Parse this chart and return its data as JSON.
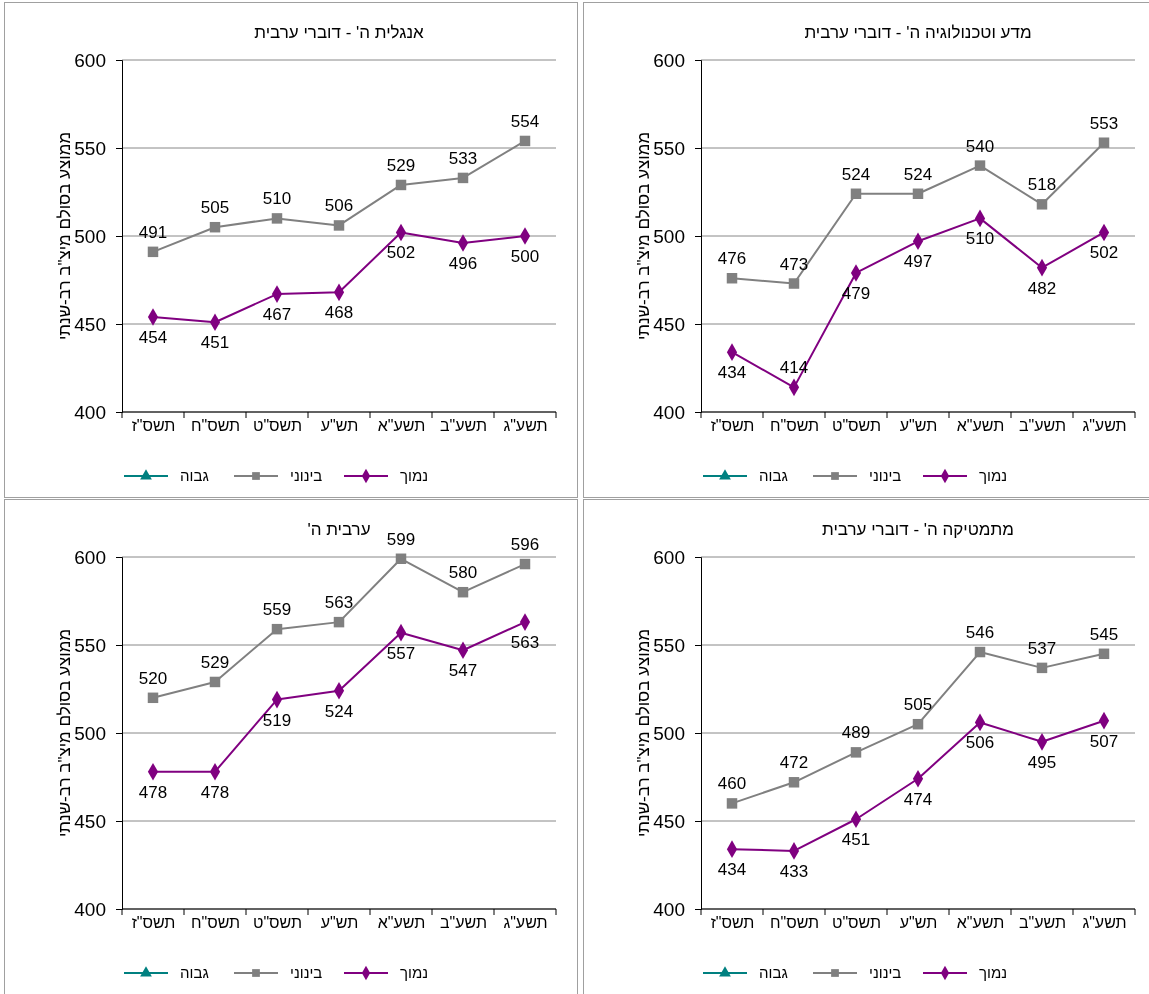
{
  "chart_data": [
    {
      "type": "line",
      "title": "אנגלית ה' - דוברי ערבית",
      "ylabel": "ממוצע בסולם מיצ\"ב רב-שנתי",
      "categories": [
        "תשס\"ז",
        "תשס\"ח",
        "תשס\"ט",
        "תש\"ע",
        "תשע\"א",
        "תשע\"ב",
        "תשע\"ג"
      ],
      "ylim": [
        400,
        600
      ],
      "yticks": [
        400,
        450,
        500,
        550,
        600
      ],
      "grid": "y",
      "legend": "bottom",
      "data_labels": true,
      "line_style": "solid",
      "series": [
        {
          "name": "נמוך",
          "color": "#800080",
          "marker": "diamond",
          "values": [
            454,
            451,
            467,
            468,
            502,
            496,
            500
          ]
        },
        {
          "name": "בינוני",
          "color": "#808080",
          "marker": "square",
          "values": [
            491,
            505,
            510,
            506,
            529,
            533,
            554
          ]
        },
        {
          "name": "גבוה",
          "color": "#008080",
          "marker": "triangle",
          "values": [
            null,
            null,
            null,
            null,
            null,
            null,
            null
          ]
        }
      ]
    },
    {
      "type": "line",
      "title": "מדע וטכנולוגיה ה' - דוברי ערבית",
      "ylabel": "ממוצע בסולם מיצ\"ב רב-שנתי",
      "categories": [
        "תשס\"ז",
        "תשס\"ח",
        "תשס\"ט",
        "תש\"ע",
        "תשע\"א",
        "תשע\"ב",
        "תשע\"ג"
      ],
      "ylim": [
        400,
        600
      ],
      "yticks": [
        400,
        450,
        500,
        550,
        600
      ],
      "grid": "y",
      "legend": "bottom",
      "data_labels": true,
      "line_style": "solid",
      "series": [
        {
          "name": "נמוך",
          "color": "#800080",
          "marker": "diamond",
          "values": [
            434,
            414,
            479,
            497,
            510,
            482,
            502
          ]
        },
        {
          "name": "בינוני",
          "color": "#808080",
          "marker": "square",
          "values": [
            476,
            473,
            524,
            524,
            540,
            518,
            553
          ]
        },
        {
          "name": "גבוה",
          "color": "#008080",
          "marker": "triangle",
          "values": [
            null,
            null,
            null,
            null,
            null,
            null,
            null
          ]
        }
      ]
    },
    {
      "type": "line",
      "title": "ערבית ה'",
      "ylabel": "ממוצע בסולם מיצ\"ב רב-שנתי",
      "categories": [
        "תשס\"ז",
        "תשס\"ח",
        "תשס\"ט",
        "תש\"ע",
        "תשע\"א",
        "תשע\"ב",
        "תשע\"ג"
      ],
      "ylim": [
        400,
        600
      ],
      "yticks": [
        400,
        450,
        500,
        550,
        600
      ],
      "grid": "y",
      "legend": "bottom",
      "data_labels": true,
      "line_style": "solid",
      "series": [
        {
          "name": "נמוך",
          "color": "#800080",
          "marker": "diamond",
          "values": [
            478,
            478,
            519,
            524,
            557,
            547,
            563
          ]
        },
        {
          "name": "בינוני",
          "color": "#808080",
          "marker": "square",
          "values": [
            520,
            529,
            559,
            563,
            599,
            580,
            596
          ]
        },
        {
          "name": "גבוה",
          "color": "#008080",
          "marker": "triangle",
          "values": [
            null,
            null,
            null,
            null,
            null,
            null,
            null
          ]
        }
      ]
    },
    {
      "type": "line",
      "title": "מתמטיקה ה' - דוברי ערבית",
      "ylabel": "ממוצע בסולם מיצ\"ב רב-שנתי",
      "categories": [
        "תשס\"ז",
        "תשס\"ח",
        "תשס\"ט",
        "תש\"ע",
        "תשע\"א",
        "תשע\"ב",
        "תשע\"ג"
      ],
      "ylim": [
        400,
        600
      ],
      "yticks": [
        400,
        450,
        500,
        550,
        600
      ],
      "grid": "y",
      "legend": "bottom",
      "data_labels": true,
      "line_style": "solid",
      "series": [
        {
          "name": "נמוך",
          "color": "#800080",
          "marker": "diamond",
          "values": [
            434,
            433,
            451,
            474,
            506,
            495,
            507
          ]
        },
        {
          "name": "בינוני",
          "color": "#808080",
          "marker": "square",
          "values": [
            460,
            472,
            489,
            505,
            546,
            537,
            545
          ]
        },
        {
          "name": "גבוה",
          "color": "#008080",
          "marker": "triangle",
          "values": [
            null,
            null,
            null,
            null,
            null,
            null,
            null
          ]
        }
      ]
    }
  ]
}
